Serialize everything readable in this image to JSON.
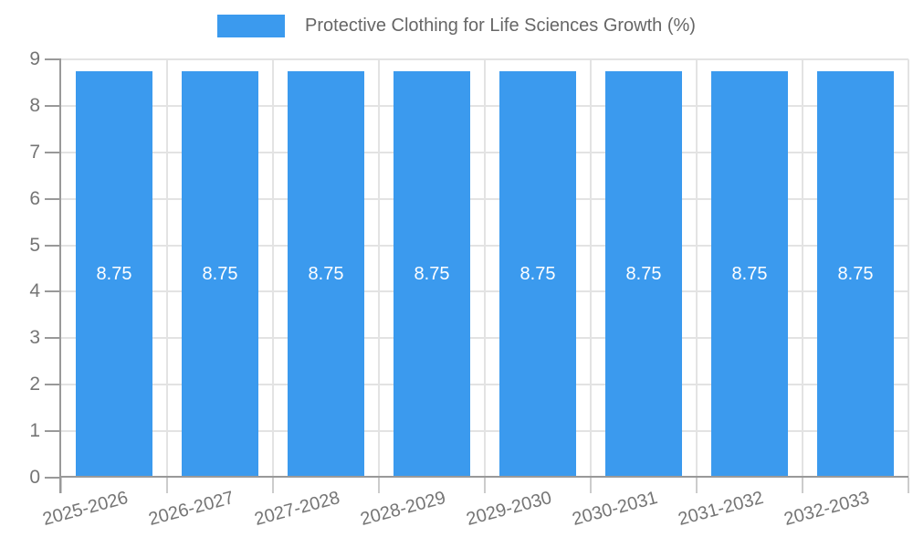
{
  "chart_data": {
    "type": "bar",
    "title": "Protective Clothing for Life Sciences Growth (%)",
    "xlabel": "",
    "ylabel": "",
    "categories": [
      "2025-2026",
      "2026-2027",
      "2027-2028",
      "2028-2029",
      "2029-2030",
      "2030-2031",
      "2031-2032",
      "2032-2033"
    ],
    "series": [
      {
        "name": "Protective Clothing for Life Sciences Growth (%)",
        "values": [
          8.75,
          8.75,
          8.75,
          8.75,
          8.75,
          8.75,
          8.75,
          8.75
        ]
      }
    ],
    "value_labels": [
      "8.75",
      "8.75",
      "8.75",
      "8.75",
      "8.75",
      "8.75",
      "8.75",
      "8.75"
    ],
    "ylim": [
      0,
      9
    ],
    "yticks": [
      0,
      1,
      2,
      3,
      4,
      5,
      6,
      7,
      8,
      9
    ],
    "grid": true,
    "legend_position": "top-center",
    "x_label_rotation_deg": -15,
    "colors": {
      "bar": "#3B9AEE",
      "bar_label": "#FFFFFF",
      "legend_text": "#666666",
      "axis_label": "#757575",
      "axis_line": "#999999",
      "gridline": "#E3E3E3",
      "category_tick": "#CCCCCC",
      "background": "#FFFFFF"
    }
  }
}
